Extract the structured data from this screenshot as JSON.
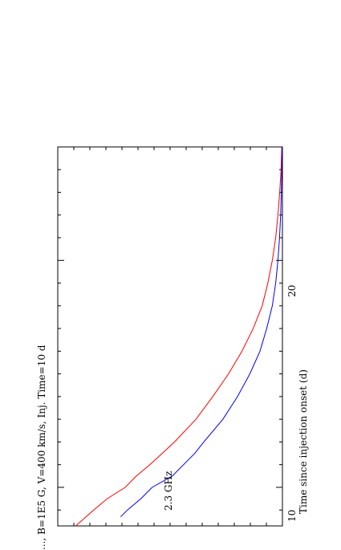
{
  "chart_data": {
    "type": "line",
    "title": "..., B=1E5 G, V=400 km/s, Inj. Time=10 d",
    "xlabel": "Time since injection onset (d)",
    "ylabel": "",
    "x_ticks": [
      "10",
      "20"
    ],
    "xlim": [
      8.3,
      25
    ],
    "axis_orientation": "rotated 90° counter-clockwise (time axis runs bottom-to-top along right edge)",
    "series": [
      {
        "name": "2.3 GHz",
        "color": "#ff0000",
        "x": [
          8.3,
          9.0,
          9.5,
          10.0,
          10.5,
          11.0,
          11.5,
          12.0,
          13.0,
          14.0,
          15.0,
          16.0,
          17.0,
          18.0,
          19.0,
          20.0,
          21.0,
          22.0,
          23.0,
          24.0,
          25.0
        ],
        "y": [
          0.92,
          0.84,
          0.78,
          0.7,
          0.65,
          0.59,
          0.535,
          0.48,
          0.385,
          0.31,
          0.24,
          0.18,
          0.13,
          0.09,
          0.065,
          0.045,
          0.03,
          0.02,
          0.012,
          0.006,
          0.003
        ]
      },
      {
        "name": "",
        "color": "#0000ff",
        "x": [
          8.7,
          9.0,
          9.5,
          10.0,
          10.5,
          11.0,
          11.5,
          12.0,
          13.0,
          14.0,
          15.0,
          16.0,
          17.0,
          18.0,
          19.0,
          20.0,
          21.0,
          22.0,
          23.0,
          24.0,
          25.0
        ],
        "y": [
          0.72,
          0.69,
          0.63,
          0.58,
          0.49,
          0.44,
          0.39,
          0.35,
          0.265,
          0.2,
          0.145,
          0.1,
          0.07,
          0.045,
          0.03,
          0.02,
          0.013,
          0.008,
          0.005,
          0.003,
          0.001
        ]
      }
    ],
    "annotations": [
      "2.3 GHz"
    ]
  }
}
